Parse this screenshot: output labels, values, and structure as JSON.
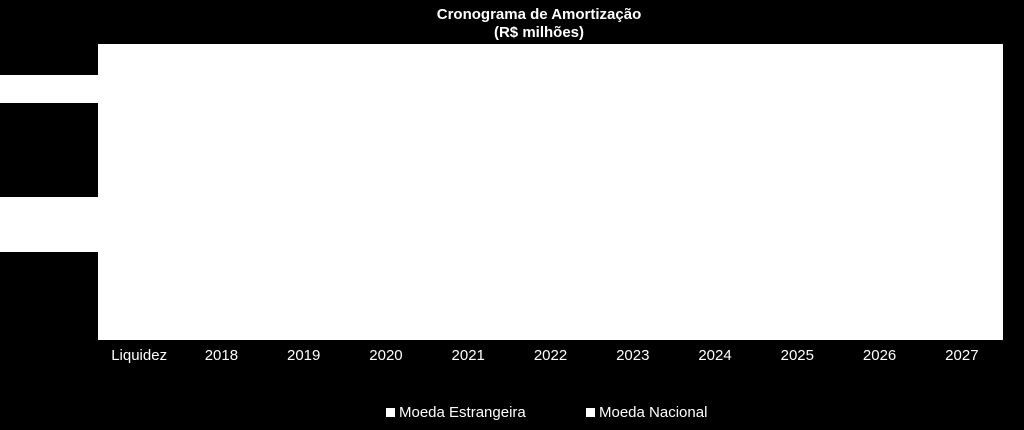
{
  "chart_data": {
    "type": "bar",
    "title": "Cronograma de Amortização",
    "subtitle": "(R$ milhões)",
    "categories": [
      "Liquidez",
      "2018",
      "2019",
      "2020",
      "2021",
      "2022",
      "2023",
      "2024",
      "2025",
      "2026",
      "2027"
    ],
    "series": [
      {
        "name": "Moeda Estrangeira",
        "color": "#ffffff",
        "values": [
          null,
          null,
          null,
          null,
          null,
          null,
          null,
          null,
          null,
          null,
          null
        ]
      },
      {
        "name": "Moeda Nacional",
        "color": "#ffffff",
        "values": [
          null,
          null,
          null,
          null,
          null,
          null,
          null,
          null,
          null,
          null,
          null
        ]
      }
    ]
  }
}
